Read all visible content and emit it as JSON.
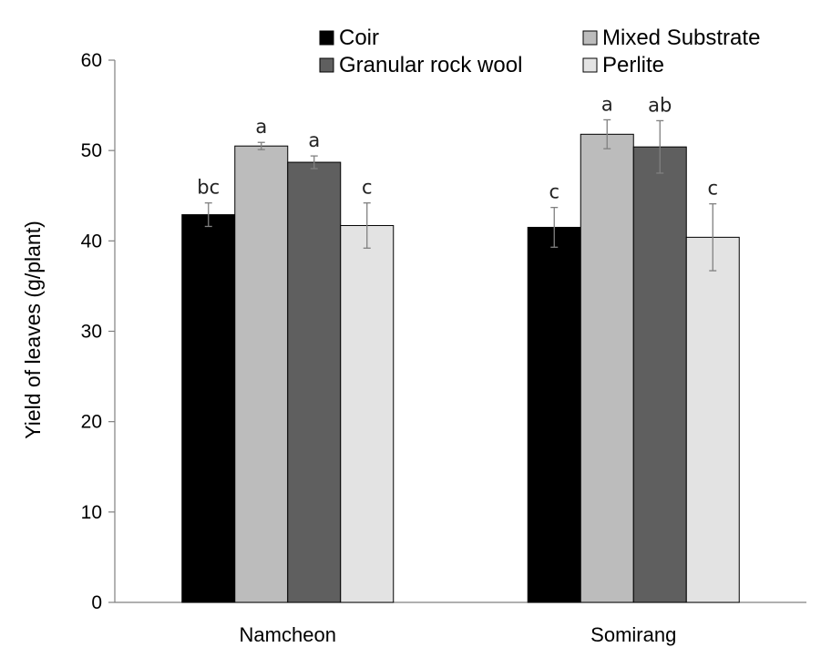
{
  "chart_data": {
    "type": "bar",
    "ylabel": "Yield of leaves (g/plant)",
    "xlabel": "",
    "ylim": [
      0,
      60
    ],
    "yticks": [
      0,
      10,
      20,
      30,
      40,
      50,
      60
    ],
    "categories": [
      "Namcheon",
      "Somirang"
    ],
    "legend_position": "top",
    "grid": false,
    "series": [
      {
        "name": "Coir",
        "color": "#000000",
        "values": [
          42.9,
          41.5
        ],
        "errors": [
          1.3,
          2.2
        ],
        "letters": [
          "bc",
          "c"
        ]
      },
      {
        "name": "Mixed Substrate",
        "color": "#bcbcbc",
        "values": [
          50.5,
          51.8
        ],
        "errors": [
          0.4,
          1.6
        ],
        "letters": [
          "a",
          "a"
        ]
      },
      {
        "name": "Granular rock wool",
        "color": "#5f5f5f",
        "values": [
          48.7,
          50.4
        ],
        "errors": [
          0.7,
          2.9
        ],
        "letters": [
          "a",
          "ab"
        ]
      },
      {
        "name": "Perlite",
        "color": "#e3e3e3",
        "values": [
          41.7,
          40.4
        ],
        "errors": [
          2.5,
          3.7
        ],
        "letters": [
          "c",
          "c"
        ]
      }
    ]
  }
}
